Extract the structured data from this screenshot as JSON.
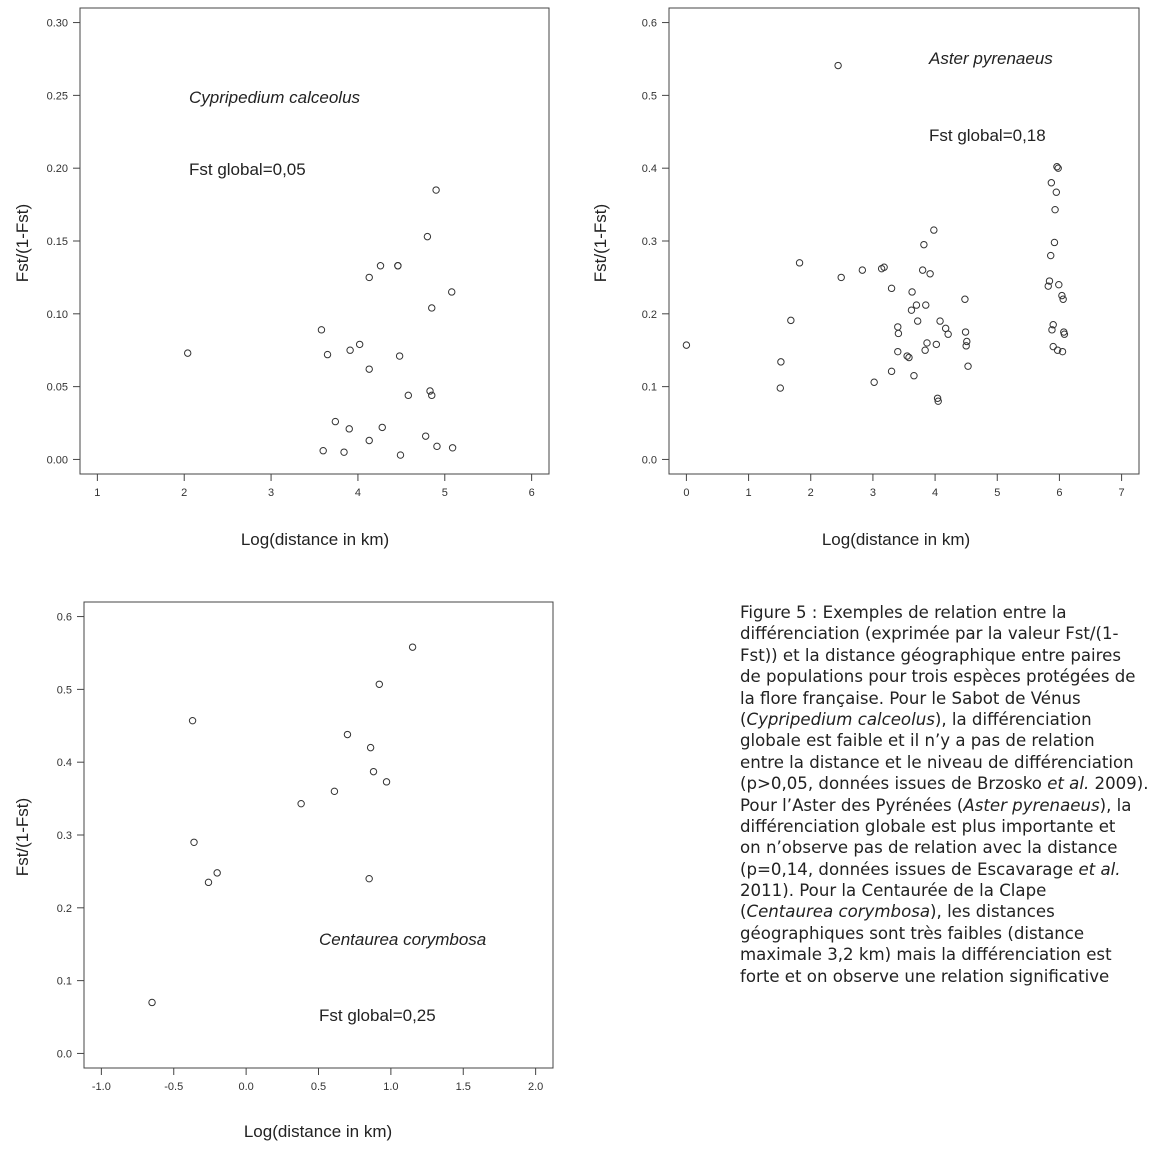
{
  "chart_data": [
    {
      "type": "scatter",
      "title": "",
      "xlabel": "Log(distance in km)",
      "ylabel": "Fst/(1-Fst)",
      "xlim": [
        0.8,
        6.2
      ],
      "ylim": [
        -0.01,
        0.31
      ],
      "xticks": [
        "1",
        "2",
        "3",
        "4",
        "5",
        "6"
      ],
      "yticks": [
        "0.00",
        "0.05",
        "0.10",
        "0.15",
        "0.20",
        "0.25",
        "0.30"
      ],
      "annotations": {
        "species": "Cypripedium calceolus",
        "fst_global": "Fst global=0,05"
      },
      "grid": false,
      "x": [
        2.04,
        3.58,
        3.65,
        3.91,
        4.02,
        4.13,
        4.26,
        4.46,
        4.48,
        4.58,
        4.8,
        4.85,
        4.9,
        5.08,
        4.13,
        4.46,
        3.6,
        3.74,
        3.84,
        3.9,
        4.13,
        4.28,
        4.78,
        4.83,
        4.85,
        4.91,
        5.09,
        4.49
      ],
      "y": [
        0.073,
        0.089,
        0.072,
        0.075,
        0.079,
        0.062,
        0.133,
        0.133,
        0.071,
        0.044,
        0.153,
        0.104,
        0.185,
        0.115,
        0.125,
        0.133,
        0.006,
        0.026,
        0.005,
        0.021,
        0.013,
        0.022,
        0.016,
        0.047,
        0.044,
        0.009,
        0.008,
        0.003
      ]
    },
    {
      "type": "scatter",
      "title": "",
      "xlabel": "Log(distance in km)",
      "ylabel": "Fst/(1-Fst)",
      "xlim": [
        -0.28,
        7.28
      ],
      "ylim": [
        -0.02,
        0.62
      ],
      "xticks": [
        "0",
        "1",
        "2",
        "3",
        "4",
        "5",
        "6",
        "7"
      ],
      "yticks": [
        "0.0",
        "0.1",
        "0.2",
        "0.3",
        "0.4",
        "0.5",
        "0.6"
      ],
      "annotations": {
        "species": "Aster pyrenaeus",
        "fst_global": "Fst global=0,18"
      },
      "grid": false,
      "x": [
        0.0,
        1.52,
        1.51,
        1.68,
        1.82,
        2.44,
        2.49,
        2.83,
        3.14,
        3.18,
        3.3,
        3.3,
        3.4,
        3.4,
        3.41,
        3.55,
        3.58,
        3.62,
        3.63,
        3.66,
        3.7,
        3.72,
        3.8,
        3.82,
        3.84,
        3.85,
        3.87,
        3.92,
        3.98,
        4.02,
        4.04,
        4.05,
        4.08,
        4.17,
        4.21,
        4.48,
        4.49,
        4.5,
        4.51,
        4.53,
        5.82,
        5.84,
        5.86,
        5.87,
        5.88,
        5.9,
        5.92,
        5.93,
        5.95,
        5.96,
        5.98,
        5.99,
        6.04,
        6.06,
        6.07,
        6.08,
        6.05,
        5.97,
        5.9,
        3.02
      ],
      "y": [
        0.157,
        0.134,
        0.098,
        0.191,
        0.27,
        0.541,
        0.25,
        0.26,
        0.262,
        0.264,
        0.235,
        0.121,
        0.148,
        0.182,
        0.173,
        0.142,
        0.14,
        0.205,
        0.23,
        0.115,
        0.212,
        0.19,
        0.26,
        0.295,
        0.15,
        0.212,
        0.16,
        0.255,
        0.315,
        0.158,
        0.084,
        0.08,
        0.19,
        0.18,
        0.172,
        0.22,
        0.175,
        0.156,
        0.162,
        0.128,
        0.238,
        0.245,
        0.28,
        0.38,
        0.178,
        0.155,
        0.298,
        0.343,
        0.367,
        0.402,
        0.4,
        0.24,
        0.225,
        0.22,
        0.175,
        0.172,
        0.148,
        0.15,
        0.185,
        0.106
      ]
    },
    {
      "type": "scatter",
      "title": "",
      "xlabel": "Log(distance in km)",
      "ylabel": "Fst/(1-Fst)",
      "xlim": [
        -1.12,
        2.12
      ],
      "ylim": [
        -0.02,
        0.62
      ],
      "xticks": [
        "-1.0",
        "-0.5",
        "0.0",
        "0.5",
        "1.0",
        "1.5",
        "2.0"
      ],
      "yticks": [
        "0.0",
        "0.1",
        "0.2",
        "0.3",
        "0.4",
        "0.5",
        "0.6"
      ],
      "annotations": {
        "species": "Centaurea corymbosa",
        "fst_global": "Fst global=0,25"
      },
      "grid": false,
      "x": [
        -0.65,
        -0.37,
        -0.36,
        -0.26,
        -0.2,
        0.38,
        0.61,
        0.7,
        0.85,
        0.86,
        0.88,
        0.92,
        0.97,
        1.15
      ],
      "y": [
        0.07,
        0.457,
        0.29,
        0.235,
        0.248,
        0.343,
        0.36,
        0.438,
        0.24,
        0.42,
        0.387,
        0.507,
        0.373,
        0.558
      ]
    }
  ],
  "caption_lines": [
    "Figure 5 : Exemples de relation entre la",
    "différenciation (exprimée par la valeur Fst/(1-",
    "Fst)) et la distance géographique entre paires",
    "de populations pour trois espèces protégées de",
    "la flore française. Pour le Sabot de Vénus",
    "(Cypripedium calceolus), la différenciation",
    "globale est faible et il n’y a pas de relation",
    "entre la distance et le niveau de différenciation",
    "(p>0,05, données issues de Brzosko et al. 2009).",
    "Pour l’Aster des Pyrénées (Aster pyrenaeus), la",
    "différenciation globale est plus importante et",
    "on n’observe pas de relation avec la distance",
    "(p=0,14, données issues de Escavarage et al.",
    "2011). Pour la Centaurée de la Clape",
    "(Centaurea corymbosa), les distances",
    "géographiques sont très faibles (distance",
    "maximale 3,2 km) mais la différenciation est",
    "forte et on observe une relation significative"
  ]
}
